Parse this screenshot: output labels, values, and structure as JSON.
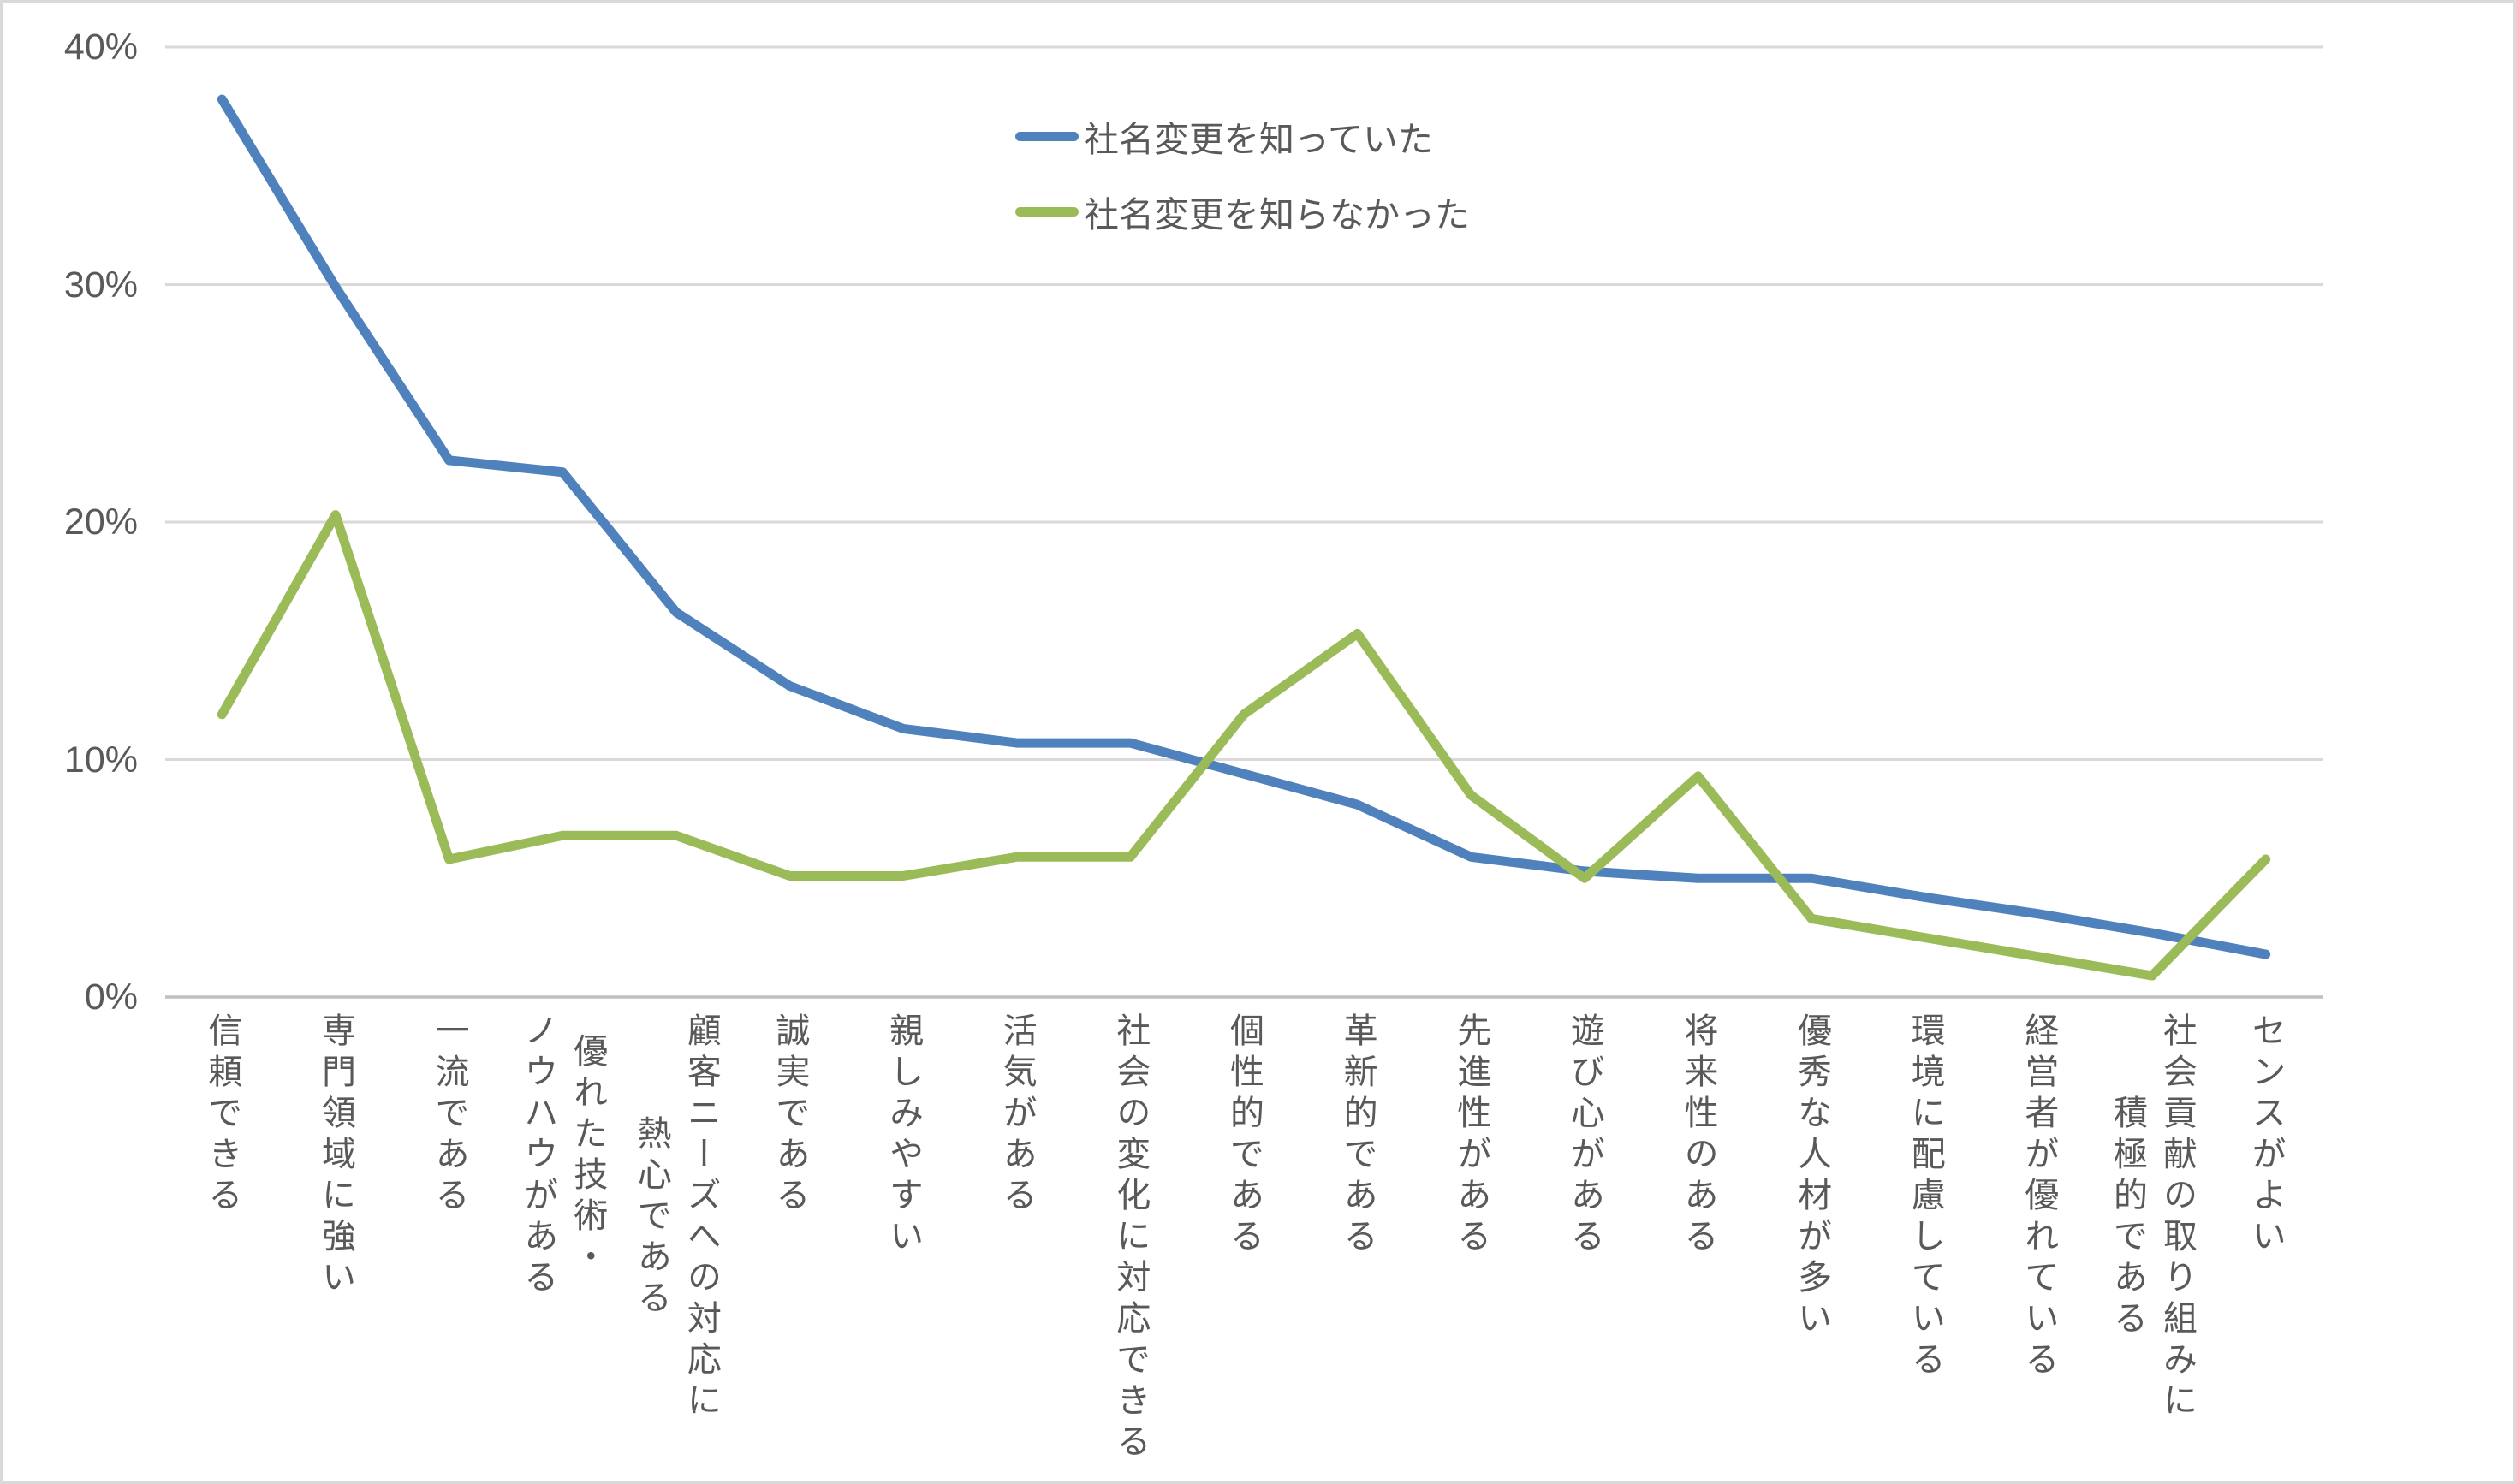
{
  "chart_data": {
    "type": "line",
    "title": "",
    "xlabel": "",
    "ylabel": "",
    "ylim": [
      0,
      40
    ],
    "grid": true,
    "legend_position": "top-center",
    "y_ticks": [
      "0%",
      "10%",
      "20%",
      "30%",
      "40%"
    ],
    "y_tick_values": [
      0,
      10,
      20,
      30,
      40
    ],
    "categories": [
      [
        "信頼できる"
      ],
      [
        "専門領域に強い"
      ],
      [
        "一流である"
      ],
      [
        "優れた技術・",
        "ノウハウがある"
      ],
      [
        "顧客ニーズへの対応に",
        "熱心である"
      ],
      [
        "誠実である"
      ],
      [
        "親しみやすい"
      ],
      [
        "活気がある"
      ],
      [
        "社会の変化に対応できる"
      ],
      [
        "個性的である"
      ],
      [
        "革新的である"
      ],
      [
        "先進性がある"
      ],
      [
        "遊び心がある"
      ],
      [
        "将来性のある"
      ],
      [
        "優秀な人材が多い"
      ],
      [
        "環境に配慮している"
      ],
      [
        "経営者が優れている"
      ],
      [
        "社会貢献の取り組みに",
        "積極的である"
      ],
      [
        "センスがよい"
      ]
    ],
    "series": [
      {
        "name": "社名変更を知っていた",
        "color": "#4F81BD",
        "values": [
          37.8,
          29.9,
          22.6,
          22.1,
          16.2,
          13.1,
          11.3,
          10.7,
          10.7,
          9.4,
          8.1,
          5.9,
          5.3,
          5.0,
          5.0,
          4.2,
          3.5,
          2.7,
          1.8
        ]
      },
      {
        "name": "社名変更を知らなかった",
        "color": "#9BBB59",
        "values": [
          11.9,
          20.3,
          5.8,
          6.8,
          6.8,
          5.1,
          5.1,
          5.9,
          5.9,
          11.9,
          15.3,
          8.5,
          5.0,
          9.3,
          3.3,
          2.5,
          1.7,
          0.9,
          5.8
        ]
      }
    ]
  },
  "colors": {
    "grid_line": "#D9D9D9",
    "axis_line": "#BFBFBF",
    "tick_text": "#595959",
    "frame_border": "#D9D9D9",
    "background": "#FFFFFF"
  }
}
